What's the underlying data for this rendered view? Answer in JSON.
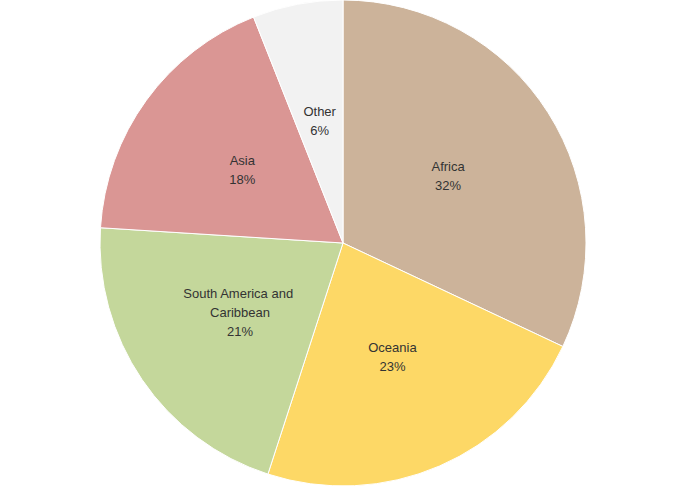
{
  "chart_data": {
    "type": "pie",
    "categories": [
      "Africa",
      "Oceania",
      "South America and Caribbean",
      "Asia",
      "Other"
    ],
    "values": [
      32,
      23,
      21,
      18,
      6
    ],
    "value_labels": [
      "32%",
      "23%",
      "21%",
      "18%",
      "6%"
    ],
    "colors": [
      "#ccb39a",
      "#fdd866",
      "#c4d79b",
      "#da9694",
      "#f2f2f2"
    ],
    "data_labels": true
  }
}
